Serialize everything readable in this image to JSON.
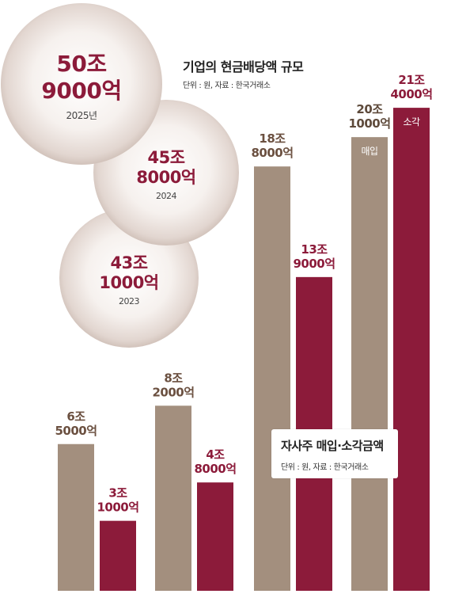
{
  "dividend": {
    "title": "기업의 현금배당액 규모",
    "note": "단위 : 원, 자료 : 한국거래소",
    "items": [
      {
        "year": "2025년",
        "line1": "50조",
        "line2": "9000억",
        "value": 509000
      },
      {
        "year": "2024",
        "line1": "45조",
        "line2": "8000억",
        "value": 458000
      },
      {
        "year": "2023",
        "line1": "43조",
        "line2": "1000억",
        "value": 431000
      }
    ]
  },
  "buyback": {
    "title": "자사주 매입·소각금액",
    "note": "단위 : 원, 자료 : 한국거래소",
    "series_labels": {
      "purchase": "매입",
      "cancel": "소각"
    },
    "groups": [
      {
        "purchase": {
          "line1": "6조",
          "line2": "5000억",
          "value": 65000
        },
        "cancel": {
          "line1": "3조",
          "line2": "1000억",
          "value": 31000
        }
      },
      {
        "purchase": {
          "line1": "8조",
          "line2": "2000억",
          "value": 82000
        },
        "cancel": {
          "line1": "4조",
          "line2": "8000억",
          "value": 48000
        }
      },
      {
        "purchase": {
          "line1": "18조",
          "line2": "8000억",
          "value": 188000
        },
        "cancel": {
          "line1": "13조",
          "line2": "9000억",
          "value": 139000
        }
      },
      {
        "purchase": {
          "line1": "20조",
          "line2": "1000억",
          "value": 201000
        },
        "cancel": {
          "line1": "21조",
          "line2": "4000억",
          "value": 214000
        }
      }
    ]
  },
  "chart_data": [
    {
      "type": "bar",
      "title": "자사주 매입·소각금액",
      "subtitle": "단위 : 원, 자료 : 한국거래소",
      "unit_note": "values in 억원",
      "categories": [
        "",
        "",
        "",
        ""
      ],
      "series": [
        {
          "name": "매입",
          "values": [
            65000,
            82000,
            188000,
            201000
          ]
        },
        {
          "name": "소각",
          "values": [
            31000,
            48000,
            139000,
            214000
          ]
        }
      ]
    },
    {
      "type": "bubble",
      "title": "기업의 현금배당액 규모",
      "subtitle": "단위 : 원, 자료 : 한국거래소",
      "categories": [
        "2025년",
        "2024",
        "2023"
      ],
      "values": [
        509000,
        458000,
        431000
      ]
    }
  ],
  "colors": {
    "purchase": "#a38f7e",
    "cancel": "#8c1b3a",
    "value_text_purchase": "#6b5040",
    "value_text_cancel": "#8c1b3a",
    "circle_text": "#8c1b3a"
  }
}
